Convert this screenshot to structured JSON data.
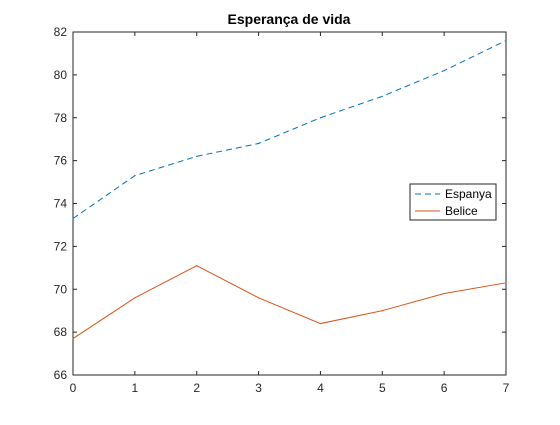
{
  "chart_data": {
    "type": "line",
    "title": "Esperança de vida",
    "xlabel": "",
    "ylabel": "",
    "xlim": [
      0,
      7
    ],
    "ylim": [
      66,
      82
    ],
    "x_ticks": [
      0,
      1,
      2,
      3,
      4,
      5,
      6,
      7
    ],
    "y_ticks": [
      66,
      68,
      70,
      72,
      74,
      76,
      78,
      80,
      82
    ],
    "grid": false,
    "legend_position": "right",
    "x": [
      0,
      1,
      2,
      3,
      4,
      5,
      6,
      7
    ],
    "series": [
      {
        "name": "Espanya",
        "values": [
          73.3,
          75.3,
          76.2,
          76.8,
          78.0,
          79.0,
          80.2,
          81.6
        ],
        "color": "#0072BD",
        "line_style": "dashed"
      },
      {
        "name": "Belice",
        "values": [
          67.7,
          69.6,
          71.1,
          69.6,
          68.4,
          69.0,
          69.8,
          70.3
        ],
        "color": "#D95319",
        "line_style": "solid"
      }
    ]
  }
}
